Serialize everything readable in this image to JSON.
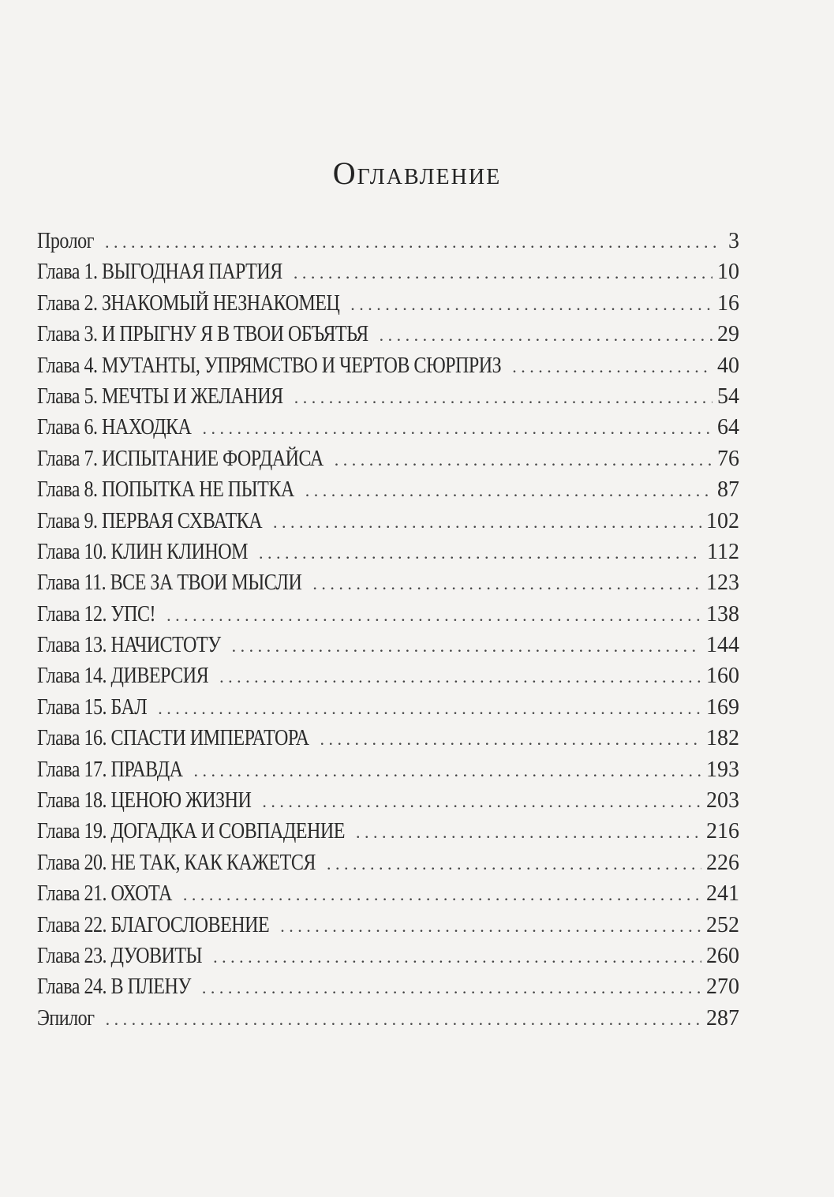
{
  "title": "Оглавление",
  "entries": [
    {
      "label": "Пролог",
      "page": "3"
    },
    {
      "label": "Глава 1. ВЫГОДНАЯ ПАРТИЯ",
      "page": "10"
    },
    {
      "label": "Глава 2. ЗНАКОМЫЙ НЕЗНАКОМЕЦ",
      "page": "16"
    },
    {
      "label": "Глава 3. И ПРЫГНУ Я В ТВОИ ОБЪЯТЬЯ",
      "page": "29"
    },
    {
      "label": "Глава 4. МУТАНТЫ, УПРЯМСТВО И ЧЕРТОВ СЮРПРИЗ",
      "page": "40"
    },
    {
      "label": "Глава 5. МЕЧТЫ И ЖЕЛАНИЯ",
      "page": "54"
    },
    {
      "label": "Глава 6. НАХОДКА",
      "page": "64"
    },
    {
      "label": "Глава 7. ИСПЫТАНИЕ ФОРДАЙСА",
      "page": "76"
    },
    {
      "label": "Глава 8. ПОПЫТКА НЕ ПЫТКА",
      "page": "87"
    },
    {
      "label": "Глава 9. ПЕРВАЯ СХВАТКА",
      "page": "102"
    },
    {
      "label": "Глава 10. КЛИН КЛИНОМ",
      "page": "112"
    },
    {
      "label": "Глава 11. ВСЕ ЗА ТВОИ МЫСЛИ",
      "page": "123"
    },
    {
      "label": "Глава 12. УПС!",
      "page": "138"
    },
    {
      "label": "Глава 13. НАЧИСТОТУ",
      "page": "144"
    },
    {
      "label": "Глава 14. ДИВЕРСИЯ",
      "page": "160"
    },
    {
      "label": "Глава 15. БАЛ",
      "page": "169"
    },
    {
      "label": "Глава 16. СПАСТИ ИМПЕРАТОРА",
      "page": "182"
    },
    {
      "label": "Глава 17. ПРАВДА",
      "page": "193"
    },
    {
      "label": "Глава 18. ЦЕНОЮ ЖИЗНИ",
      "page": "203"
    },
    {
      "label": "Глава 19. ДОГАДКА И СОВПАДЕНИЕ",
      "page": "216"
    },
    {
      "label": "Глава 20. НЕ ТАК, КАК КАЖЕТСЯ",
      "page": "226"
    },
    {
      "label": "Глава 21. ОХОТА",
      "page": "241"
    },
    {
      "label": "Глава 22. БЛАГОСЛОВЕНИЕ",
      "page": "252"
    },
    {
      "label": "Глава 23. ДУОВИТЫ",
      "page": "260"
    },
    {
      "label": "Глава 24. В ПЛЕНУ",
      "page": "270"
    },
    {
      "label": "Эпилог",
      "page": "287"
    }
  ]
}
